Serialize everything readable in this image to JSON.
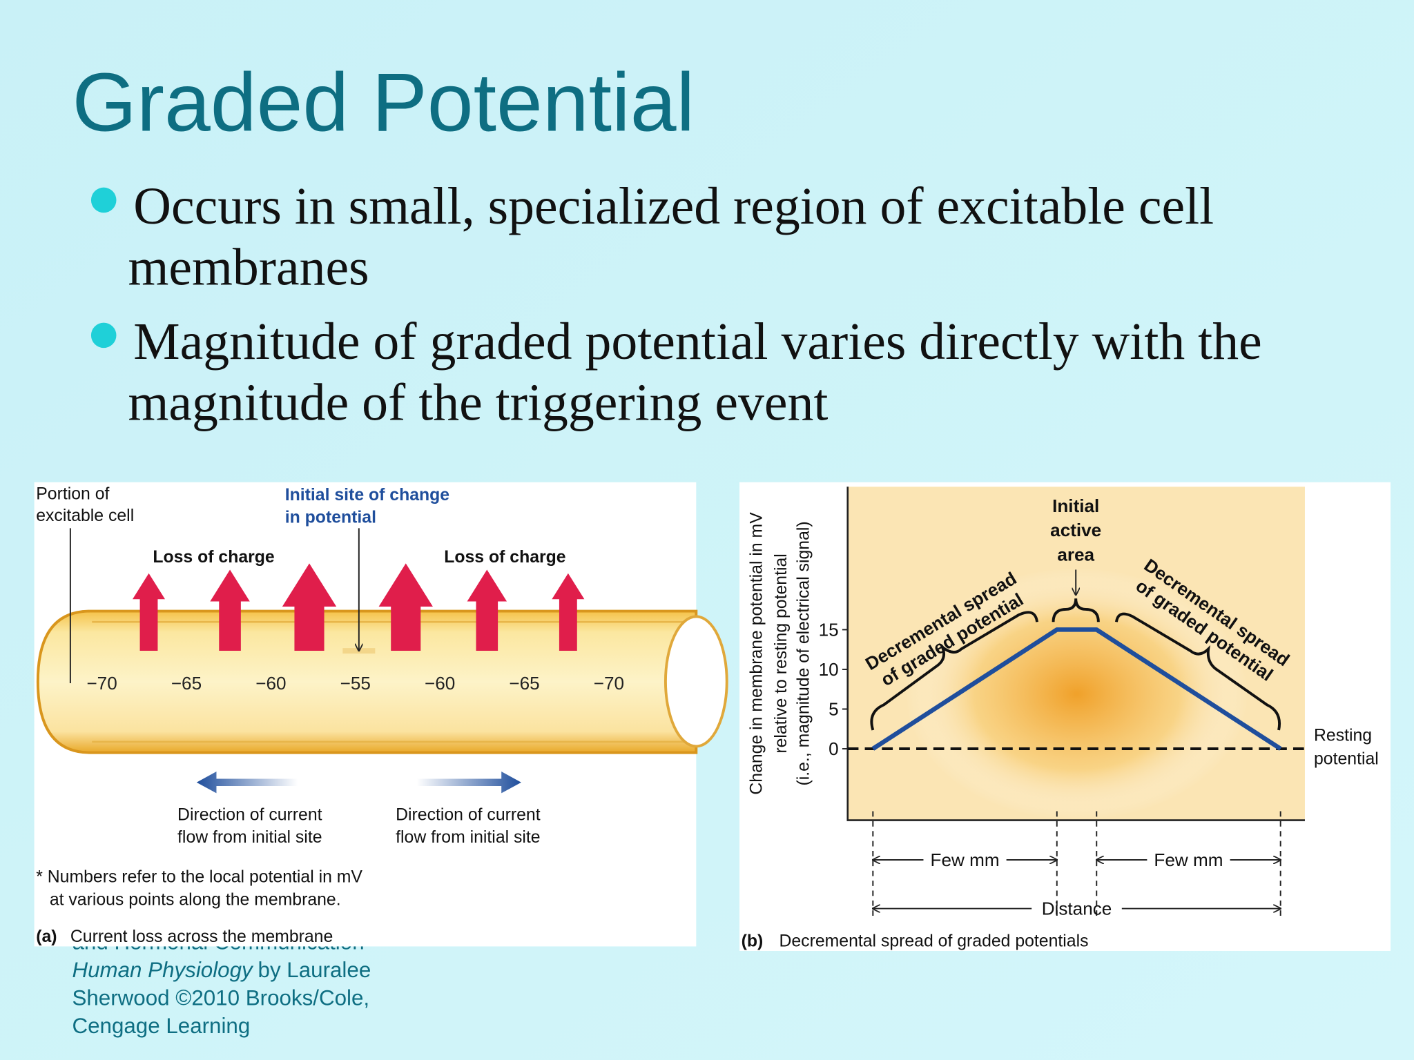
{
  "title": "Graded Potential",
  "bullets": [
    [
      "Occurs in small, specialized region of excitable cell",
      "membranes"
    ],
    [
      "Magnitude of graded potential varies directly with the",
      "magnitude of the triggering event"
    ]
  ],
  "credit": {
    "lines": [
      "and Hormonal Communication"
    ],
    "book": "Human Physiology",
    "by": "by Lauralee",
    "rest": [
      "Sherwood ©2010 Brooks/Cole,",
      "Cengage Learning"
    ]
  },
  "figure_a": {
    "portion_label": [
      "Portion of",
      "excitable cell"
    ],
    "initial_site": [
      "Initial site of change",
      "in potential"
    ],
    "loss_labels": [
      "Loss of charge",
      "Loss of charge"
    ],
    "potentials": [
      "−70",
      "−65",
      "−60",
      "−55",
      "−60",
      "−65",
      "−70"
    ],
    "direction_labels": [
      [
        "Direction of current",
        "flow from initial site"
      ],
      [
        "Direction of current",
        "flow from initial site"
      ]
    ],
    "footnote": [
      "* Numbers refer to the local potential in mV",
      "at various points along the membrane."
    ],
    "caption_letter": "(a)",
    "caption": "Current loss across the membrane"
  },
  "chart_data": {
    "type": "line",
    "ylabel": [
      "Change in membrane potential in mV",
      "relative to resting potential",
      "(i.e., magnitude of electrical signal)"
    ],
    "categories": [
      null,
      null,
      null,
      null
    ],
    "values": [
      0,
      15,
      15,
      0
    ],
    "color": "#1f4e9c",
    "ylim": [
      -9,
      33
    ],
    "yticks": [
      0,
      5,
      10,
      15
    ],
    "annotations": {
      "initial": [
        "Initial",
        "active",
        "area"
      ],
      "spread_left": [
        "Decremental spread",
        "of graded potential"
      ],
      "spread_right": [
        "Decremental spread",
        "of graded potential"
      ],
      "resting": [
        "Resting",
        "potential"
      ],
      "few_mm": [
        "Few mm",
        "Few mm"
      ],
      "distance": "Distance"
    },
    "caption_letter": "(b)",
    "caption": "Decremental spread of graded potentials"
  }
}
